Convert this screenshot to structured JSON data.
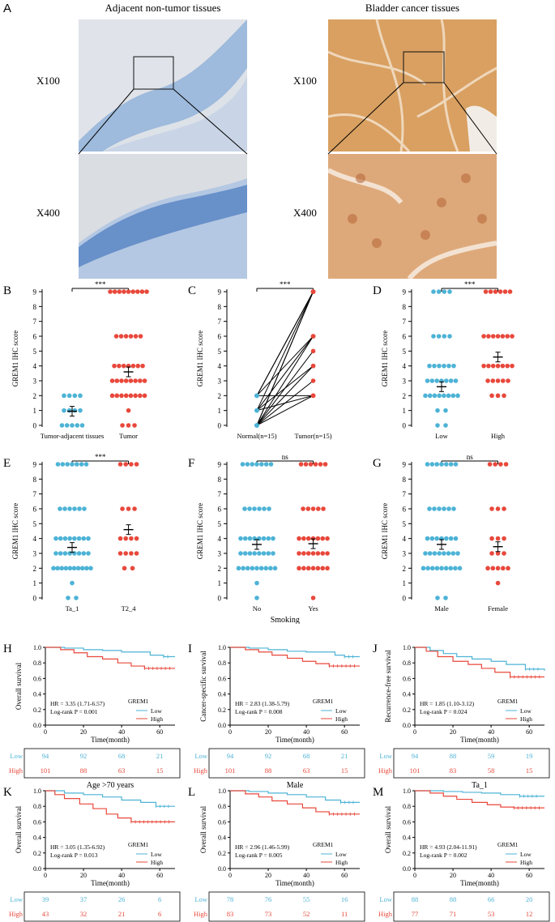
{
  "panel_a": {
    "label": "A",
    "left_title": "Adjacent non-tumor tissues",
    "right_title": "Bladder cancer tissues",
    "mag_low": "X100",
    "mag_high": "X400"
  },
  "colors": {
    "low": "#4db3d6",
    "high": "#e8483b"
  },
  "dot_panels": [
    {
      "label": "B",
      "ylabel": "GREM1 IHC score",
      "cats": [
        "Tumor-adjacent tissues",
        "Tumor"
      ],
      "sig": "***",
      "means": [
        0.95,
        3.6
      ],
      "vals": [
        [
          0,
          0,
          0,
          0,
          0,
          1,
          1,
          1,
          1,
          2,
          2,
          2,
          2
        ],
        [
          0,
          0,
          0,
          1,
          2,
          2,
          2,
          2,
          2,
          2,
          2,
          2,
          3,
          3,
          3,
          3,
          3,
          3,
          3,
          3,
          4,
          4,
          4,
          4,
          4,
          4,
          4,
          6,
          6,
          6,
          6,
          6,
          6,
          9,
          9,
          9,
          9,
          9,
          9,
          9,
          9,
          9
        ]
      ],
      "xlabel": ""
    },
    {
      "label": "C",
      "type": "paired",
      "ylabel": "GREM1 IHC score",
      "cats": [
        "Normal(n=15)",
        "Tumor(n=15)"
      ],
      "sig": "***",
      "pairs": [
        [
          0,
          2
        ],
        [
          0,
          3
        ],
        [
          0,
          4
        ],
        [
          0,
          6
        ],
        [
          0,
          9
        ],
        [
          1,
          4
        ],
        [
          1,
          6
        ],
        [
          1,
          9
        ],
        [
          2,
          2
        ],
        [
          2,
          9
        ],
        [
          2,
          6
        ],
        [
          0,
          5
        ],
        [
          1,
          2
        ],
        [
          0,
          9
        ],
        [
          2,
          9
        ]
      ],
      "xlabel": ""
    },
    {
      "label": "D",
      "ylabel": "GREM1 IHC score",
      "cats": [
        "Low",
        "High"
      ],
      "sig": "***",
      "means": [
        2.6,
        4.6
      ],
      "vals": [
        [
          0,
          0,
          1,
          1,
          2,
          2,
          2,
          2,
          2,
          2,
          2,
          2,
          3,
          3,
          3,
          3,
          3,
          3,
          3,
          4,
          4,
          4,
          4,
          4,
          4,
          6,
          6,
          6,
          6,
          9,
          9,
          9,
          9
        ],
        [
          2,
          2,
          2,
          3,
          3,
          3,
          3,
          3,
          4,
          4,
          4,
          4,
          4,
          4,
          4,
          6,
          6,
          6,
          6,
          6,
          6,
          6,
          9,
          9,
          9,
          9,
          9,
          9
        ]
      ],
      "xlabel": ""
    },
    {
      "label": "E",
      "ylabel": "GREM1 IHC score",
      "cats": [
        "Ta_1",
        "T2_4"
      ],
      "sig": "***",
      "means": [
        3.4,
        4.6
      ],
      "vals": [
        [
          0,
          0,
          1,
          2,
          2,
          2,
          2,
          2,
          2,
          2,
          2,
          2,
          2,
          3,
          3,
          3,
          3,
          3,
          3,
          3,
          3,
          4,
          4,
          4,
          4,
          4,
          4,
          4,
          4,
          6,
          6,
          6,
          6,
          6,
          6,
          9,
          9,
          9,
          9,
          9,
          9,
          9
        ],
        [
          2,
          2,
          3,
          3,
          3,
          3,
          4,
          4,
          4,
          4,
          6,
          6,
          6,
          9,
          9,
          9,
          9
        ]
      ],
      "xlabel": ""
    },
    {
      "label": "F",
      "ylabel": "GREM1 IHC score",
      "cats": [
        "No",
        "Yes"
      ],
      "sig": "ns",
      "means": [
        3.6,
        3.65
      ],
      "vals": [
        [
          0,
          1,
          2,
          2,
          2,
          2,
          2,
          2,
          2,
          2,
          2,
          3,
          3,
          3,
          3,
          3,
          3,
          3,
          3,
          4,
          4,
          4,
          4,
          4,
          4,
          4,
          4,
          6,
          6,
          6,
          6,
          6,
          6,
          9,
          9,
          9,
          9,
          9,
          9,
          9
        ],
        [
          0,
          2,
          2,
          2,
          2,
          2,
          2,
          2,
          3,
          3,
          3,
          3,
          3,
          3,
          3,
          4,
          4,
          4,
          4,
          4,
          4,
          4,
          6,
          6,
          6,
          6,
          6,
          9,
          9,
          9,
          9,
          9,
          9
        ]
      ],
      "xlabel": "Smoking"
    },
    {
      "label": "G",
      "ylabel": "GREM1 IHC score",
      "cats": [
        "Male",
        "Female"
      ],
      "sig": "ns",
      "means": [
        3.6,
        3.45
      ],
      "vals": [
        [
          0,
          0,
          2,
          2,
          2,
          2,
          2,
          2,
          2,
          2,
          2,
          3,
          3,
          3,
          3,
          3,
          3,
          3,
          3,
          4,
          4,
          4,
          4,
          4,
          4,
          4,
          6,
          6,
          6,
          6,
          6,
          6,
          9,
          9,
          9,
          9,
          9,
          9,
          9
        ],
        [
          1,
          2,
          2,
          2,
          2,
          2,
          3,
          3,
          3,
          4,
          4,
          4,
          6,
          6,
          6,
          9,
          9,
          9,
          9
        ]
      ],
      "xlabel": ""
    }
  ],
  "km_panels": [
    {
      "label": "H",
      "title": "",
      "ylabel": "Overall survival",
      "hr": "HR = 3.35 (1.71-6.57)",
      "p": "Log-rank P = 0.001",
      "risk": {
        "low": [
          "94",
          "92",
          "68",
          "21"
        ],
        "high": [
          "101",
          "88",
          "63",
          "15"
        ]
      },
      "low_steps": [
        [
          0,
          1
        ],
        [
          10,
          0.99
        ],
        [
          20,
          0.97
        ],
        [
          30,
          0.96
        ],
        [
          40,
          0.94
        ],
        [
          55,
          0.9
        ],
        [
          62,
          0.88
        ],
        [
          68,
          0.88
        ]
      ],
      "high_steps": [
        [
          0,
          1
        ],
        [
          8,
          0.97
        ],
        [
          15,
          0.93
        ],
        [
          22,
          0.88
        ],
        [
          30,
          0.85
        ],
        [
          38,
          0.8
        ],
        [
          45,
          0.76
        ],
        [
          52,
          0.73
        ],
        [
          68,
          0.73
        ]
      ]
    },
    {
      "label": "I",
      "title": "",
      "ylabel": "Cancer-specific survival",
      "hr": "HR = 2.83 (1.38-5.79)",
      "p": "Log-rank P = 0.008",
      "risk": {
        "low": [
          "94",
          "92",
          "68",
          "21"
        ],
        "high": [
          "101",
          "88",
          "63",
          "15"
        ]
      },
      "low_steps": [
        [
          0,
          1
        ],
        [
          10,
          0.99
        ],
        [
          20,
          0.97
        ],
        [
          30,
          0.95
        ],
        [
          40,
          0.94
        ],
        [
          55,
          0.9
        ],
        [
          60,
          0.88
        ],
        [
          68,
          0.88
        ]
      ],
      "high_steps": [
        [
          0,
          1
        ],
        [
          8,
          0.97
        ],
        [
          15,
          0.94
        ],
        [
          22,
          0.9
        ],
        [
          30,
          0.86
        ],
        [
          38,
          0.82
        ],
        [
          45,
          0.79
        ],
        [
          52,
          0.76
        ],
        [
          68,
          0.76
        ]
      ]
    },
    {
      "label": "J",
      "title": "",
      "ylabel": "Recurrence-free survival",
      "hr": "HR = 1.85 (1.10-3.12)",
      "p": "Log-rank P = 0.024",
      "risk": {
        "low": [
          "94",
          "88",
          "59",
          "19"
        ],
        "high": [
          "101",
          "83",
          "58",
          "15"
        ]
      },
      "low_steps": [
        [
          0,
          1
        ],
        [
          8,
          0.96
        ],
        [
          15,
          0.92
        ],
        [
          22,
          0.88
        ],
        [
          30,
          0.85
        ],
        [
          40,
          0.82
        ],
        [
          48,
          0.78
        ],
        [
          58,
          0.72
        ],
        [
          68,
          0.7
        ]
      ],
      "high_steps": [
        [
          0,
          1
        ],
        [
          6,
          0.95
        ],
        [
          12,
          0.88
        ],
        [
          20,
          0.82
        ],
        [
          28,
          0.78
        ],
        [
          35,
          0.73
        ],
        [
          42,
          0.68
        ],
        [
          50,
          0.62
        ],
        [
          68,
          0.62
        ]
      ]
    },
    {
      "label": "K",
      "title": "Age >70 years",
      "ylabel": "Overall survival",
      "hr": "HR = 3.05 (1.35-6.92)",
      "p": "Log-rank P = 0.013",
      "risk": {
        "low": [
          "39",
          "37",
          "26",
          "6"
        ],
        "high": [
          "43",
          "32",
          "21",
          "6"
        ]
      },
      "low_steps": [
        [
          0,
          1
        ],
        [
          10,
          0.97
        ],
        [
          20,
          0.95
        ],
        [
          30,
          0.92
        ],
        [
          40,
          0.88
        ],
        [
          50,
          0.85
        ],
        [
          58,
          0.8
        ],
        [
          68,
          0.8
        ]
      ],
      "high_steps": [
        [
          0,
          1
        ],
        [
          5,
          0.95
        ],
        [
          10,
          0.9
        ],
        [
          18,
          0.83
        ],
        [
          25,
          0.77
        ],
        [
          32,
          0.7
        ],
        [
          38,
          0.65
        ],
        [
          45,
          0.6
        ],
        [
          68,
          0.6
        ]
      ]
    },
    {
      "label": "L",
      "title": "Male",
      "ylabel": "Overall survival",
      "hr": "HR = 2.96 (1.46-5.99)",
      "p": "Log-rank P = 0.005",
      "risk": {
        "low": [
          "78",
          "76",
          "55",
          "16"
        ],
        "high": [
          "83",
          "73",
          "52",
          "11"
        ]
      },
      "low_steps": [
        [
          0,
          1
        ],
        [
          10,
          0.99
        ],
        [
          20,
          0.97
        ],
        [
          30,
          0.95
        ],
        [
          40,
          0.92
        ],
        [
          50,
          0.88
        ],
        [
          58,
          0.85
        ],
        [
          68,
          0.85
        ]
      ],
      "high_steps": [
        [
          0,
          1
        ],
        [
          8,
          0.96
        ],
        [
          15,
          0.92
        ],
        [
          22,
          0.87
        ],
        [
          30,
          0.83
        ],
        [
          38,
          0.78
        ],
        [
          45,
          0.73
        ],
        [
          52,
          0.7
        ],
        [
          68,
          0.7
        ]
      ]
    },
    {
      "label": "M",
      "title": "Ta_1",
      "ylabel": "Overall survival",
      "hr": "HR = 4.93 (2.04-11.91)",
      "p": "Log-rank P = 0.002",
      "risk": {
        "low": [
          "88",
          "88",
          "66",
          "20"
        ],
        "high": [
          "77",
          "71",
          "53",
          "12"
        ]
      },
      "low_steps": [
        [
          0,
          1
        ],
        [
          15,
          0.99
        ],
        [
          25,
          0.98
        ],
        [
          35,
          0.97
        ],
        [
          45,
          0.95
        ],
        [
          55,
          0.93
        ],
        [
          68,
          0.93
        ]
      ],
      "high_steps": [
        [
          0,
          1
        ],
        [
          8,
          0.97
        ],
        [
          15,
          0.93
        ],
        [
          22,
          0.89
        ],
        [
          30,
          0.85
        ],
        [
          38,
          0.82
        ],
        [
          45,
          0.79
        ],
        [
          52,
          0.78
        ],
        [
          68,
          0.78
        ]
      ]
    }
  ],
  "km_common": {
    "xlabel": "Time(month)",
    "legend_title": "GREM1",
    "legend_low": "Low",
    "legend_high": "High",
    "risk_low_label": "Low",
    "risk_high_label": "High",
    "yticks": [
      "0.0",
      "0.2",
      "0.4",
      "0.6",
      "0.8",
      "1.0"
    ],
    "xticks": [
      "0",
      "20",
      "40",
      "60"
    ]
  },
  "chart_data": [
    {
      "type": "scatter",
      "label": "B",
      "ylim": [
        0,
        9
      ],
      "categories": [
        "Tumor-adjacent tissues",
        "Tumor"
      ],
      "ylabel": "GREM1 IHC score"
    },
    {
      "type": "line",
      "label": "C",
      "ylim": [
        0,
        9
      ],
      "categories": [
        "Normal(n=15)",
        "Tumor(n=15)"
      ],
      "ylabel": "GREM1 IHC score"
    },
    {
      "type": "scatter",
      "label": "D",
      "ylim": [
        0,
        9
      ],
      "categories": [
        "Low",
        "High"
      ],
      "ylabel": "GREM1 IHC score"
    },
    {
      "type": "scatter",
      "label": "E",
      "ylim": [
        0,
        9
      ],
      "categories": [
        "Ta_1",
        "T2_4"
      ],
      "ylabel": "GREM1 IHC score"
    },
    {
      "type": "scatter",
      "label": "F",
      "ylim": [
        0,
        9
      ],
      "categories": [
        "No",
        "Yes"
      ],
      "ylabel": "GREM1 IHC score",
      "xlabel": "Smoking"
    },
    {
      "type": "scatter",
      "label": "G",
      "ylim": [
        0,
        9
      ],
      "categories": [
        "Male",
        "Female"
      ],
      "ylabel": "GREM1 IHC score"
    },
    {
      "type": "line",
      "label": "H",
      "xlim": [
        0,
        68
      ],
      "ylim": [
        0,
        1
      ],
      "series": [
        {
          "name": "Low"
        },
        {
          "name": "High"
        }
      ]
    },
    {
      "type": "line",
      "label": "I",
      "xlim": [
        0,
        68
      ],
      "ylim": [
        0,
        1
      ],
      "series": [
        {
          "name": "Low"
        },
        {
          "name": "High"
        }
      ]
    },
    {
      "type": "line",
      "label": "J",
      "xlim": [
        0,
        68
      ],
      "ylim": [
        0,
        1
      ],
      "series": [
        {
          "name": "Low"
        },
        {
          "name": "High"
        }
      ]
    },
    {
      "type": "line",
      "label": "K",
      "xlim": [
        0,
        68
      ],
      "ylim": [
        0,
        1
      ],
      "series": [
        {
          "name": "Low"
        },
        {
          "name": "High"
        }
      ]
    },
    {
      "type": "line",
      "label": "L",
      "xlim": [
        0,
        68
      ],
      "ylim": [
        0,
        1
      ],
      "series": [
        {
          "name": "Low"
        },
        {
          "name": "High"
        }
      ]
    },
    {
      "type": "line",
      "label": "M",
      "xlim": [
        0,
        68
      ],
      "ylim": [
        0,
        1
      ],
      "series": [
        {
          "name": "Low"
        },
        {
          "name": "High"
        }
      ]
    }
  ]
}
